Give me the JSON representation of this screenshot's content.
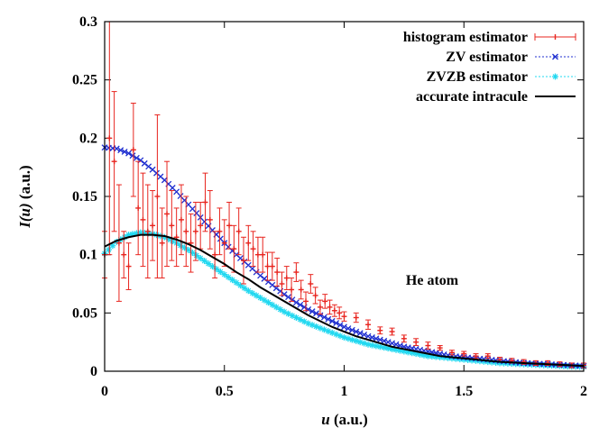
{
  "chart_data": {
    "type": "line",
    "xlabel_var": "u",
    "xlabel_unit": " (a.u.)",
    "ylabel_var": "I(u)",
    "ylabel_unit": " (a.u.)",
    "xlim": [
      0,
      2
    ],
    "ylim": [
      0,
      0.3
    ],
    "xticks": [
      0,
      0.5,
      1,
      1.5,
      2
    ],
    "xtick_labels": [
      "0",
      "0.5",
      "1",
      "1.5",
      "2"
    ],
    "yticks": [
      0,
      0.05,
      0.1,
      0.15,
      0.2,
      0.25,
      0.3
    ],
    "ytick_labels": [
      "0",
      "0.05",
      "0.1",
      "0.15",
      "0.2",
      "0.25",
      "0.3"
    ],
    "legend_position": "top-right",
    "annotation": "He atom",
    "colors": {
      "histogram": "#e8251f",
      "zv": "#1f2fd0",
      "zvzb": "#20d8f0",
      "accurate": "#000000"
    },
    "series": [
      {
        "name": "histogram estimator",
        "style": "errorbars",
        "x": [
          0.0,
          0.02,
          0.04,
          0.06,
          0.08,
          0.1,
          0.12,
          0.14,
          0.16,
          0.18,
          0.2,
          0.22,
          0.24,
          0.26,
          0.28,
          0.3,
          0.32,
          0.34,
          0.36,
          0.38,
          0.4,
          0.42,
          0.44,
          0.46,
          0.48,
          0.5,
          0.52,
          0.54,
          0.56,
          0.58,
          0.6,
          0.62,
          0.64,
          0.66,
          0.68,
          0.7,
          0.72,
          0.74,
          0.76,
          0.78,
          0.8,
          0.82,
          0.84,
          0.86,
          0.88,
          0.9,
          0.92,
          0.94,
          0.96,
          0.98,
          1.0,
          1.05,
          1.1,
          1.15,
          1.2,
          1.25,
          1.3,
          1.35,
          1.4,
          1.45,
          1.5,
          1.55,
          1.6,
          1.65,
          1.7,
          1.75,
          1.8,
          1.85,
          1.9,
          1.95,
          2.0
        ],
        "values": [
          0.1,
          0.2,
          0.18,
          0.11,
          0.1,
          0.09,
          0.19,
          0.14,
          0.13,
          0.12,
          0.125,
          0.15,
          0.11,
          0.135,
          0.125,
          0.115,
          0.13,
          0.12,
          0.11,
          0.12,
          0.125,
          0.145,
          0.13,
          0.1,
          0.12,
          0.11,
          0.125,
          0.105,
          0.12,
          0.095,
          0.11,
          0.105,
          0.1,
          0.1,
          0.09,
          0.09,
          0.085,
          0.075,
          0.08,
          0.07,
          0.085,
          0.07,
          0.06,
          0.075,
          0.065,
          0.055,
          0.06,
          0.055,
          0.052,
          0.05,
          0.047,
          0.046,
          0.04,
          0.035,
          0.034,
          0.028,
          0.025,
          0.022,
          0.02,
          0.016,
          0.015,
          0.013,
          0.013,
          0.01,
          0.009,
          0.008,
          0.007,
          0.007,
          0.006,
          0.005,
          0.005
        ],
        "errors": [
          0.02,
          0.1,
          0.06,
          0.05,
          0.02,
          0.02,
          0.04,
          0.04,
          0.04,
          0.04,
          0.03,
          0.07,
          0.03,
          0.045,
          0.03,
          0.025,
          0.03,
          0.03,
          0.025,
          0.025,
          0.02,
          0.025,
          0.025,
          0.02,
          0.02,
          0.02,
          0.02,
          0.02,
          0.02,
          0.02,
          0.015,
          0.015,
          0.015,
          0.015,
          0.012,
          0.012,
          0.012,
          0.01,
          0.01,
          0.01,
          0.008,
          0.008,
          0.008,
          0.008,
          0.007,
          0.006,
          0.006,
          0.006,
          0.005,
          0.005,
          0.004,
          0.004,
          0.004,
          0.003,
          0.003,
          0.003,
          0.003,
          0.003,
          0.002,
          0.002,
          0.002,
          0.002,
          0.002,
          0.002,
          0.002,
          0.002,
          0.002,
          0.002,
          0.002,
          0.002,
          0.002
        ]
      },
      {
        "name": "ZV estimator",
        "style": "dotted-x",
        "x": [
          0.0,
          0.05,
          0.1,
          0.15,
          0.2,
          0.25,
          0.3,
          0.35,
          0.4,
          0.45,
          0.5,
          0.55,
          0.6,
          0.65,
          0.7,
          0.75,
          0.8,
          0.85,
          0.9,
          0.95,
          1.0,
          1.05,
          1.1,
          1.15,
          1.2,
          1.25,
          1.3,
          1.35,
          1.4,
          1.45,
          1.5,
          1.55,
          1.6,
          1.65,
          1.7,
          1.75,
          1.8,
          1.85,
          1.9,
          1.95,
          2.0
        ],
        "values": [
          0.192,
          0.191,
          0.187,
          0.181,
          0.173,
          0.164,
          0.154,
          0.143,
          0.132,
          0.121,
          0.11,
          0.1,
          0.091,
          0.082,
          0.074,
          0.066,
          0.059,
          0.053,
          0.048,
          0.043,
          0.038,
          0.034,
          0.03,
          0.027,
          0.024,
          0.021,
          0.019,
          0.017,
          0.015,
          0.013,
          0.012,
          0.011,
          0.01,
          0.009,
          0.008,
          0.007,
          0.0065,
          0.006,
          0.0055,
          0.005,
          0.0045
        ]
      },
      {
        "name": "ZVZB estimator",
        "style": "dotted-star",
        "x": [
          0.0,
          0.05,
          0.1,
          0.15,
          0.2,
          0.25,
          0.3,
          0.35,
          0.4,
          0.45,
          0.5,
          0.55,
          0.6,
          0.65,
          0.7,
          0.75,
          0.8,
          0.85,
          0.9,
          0.95,
          1.0,
          1.05,
          1.1,
          1.15,
          1.2,
          1.25,
          1.3,
          1.35,
          1.4,
          1.45,
          1.5,
          1.55,
          1.6,
          1.65,
          1.7,
          1.75,
          1.8,
          1.85,
          1.9,
          1.95,
          2.0
        ],
        "values": [
          0.101,
          0.111,
          0.117,
          0.119,
          0.118,
          0.115,
          0.11,
          0.104,
          0.097,
          0.09,
          0.083,
          0.076,
          0.069,
          0.063,
          0.057,
          0.051,
          0.046,
          0.041,
          0.037,
          0.033,
          0.029,
          0.026,
          0.023,
          0.021,
          0.019,
          0.017,
          0.015,
          0.013,
          0.012,
          0.011,
          0.01,
          0.009,
          0.008,
          0.007,
          0.0065,
          0.006,
          0.0055,
          0.005,
          0.0045,
          0.004,
          0.0038
        ]
      },
      {
        "name": "accurate intracule",
        "style": "solid",
        "x": [
          0.0,
          0.05,
          0.1,
          0.15,
          0.2,
          0.25,
          0.3,
          0.35,
          0.4,
          0.45,
          0.5,
          0.55,
          0.6,
          0.65,
          0.7,
          0.75,
          0.8,
          0.85,
          0.9,
          0.95,
          1.0,
          1.05,
          1.1,
          1.15,
          1.2,
          1.25,
          1.3,
          1.35,
          1.4,
          1.45,
          1.5,
          1.55,
          1.6,
          1.65,
          1.7,
          1.75,
          1.8,
          1.85,
          1.9,
          1.95,
          2.0
        ],
        "values": [
          0.107,
          0.112,
          0.115,
          0.117,
          0.117,
          0.116,
          0.113,
          0.109,
          0.104,
          0.098,
          0.092,
          0.085,
          0.079,
          0.072,
          0.066,
          0.06,
          0.054,
          0.048,
          0.043,
          0.038,
          0.034,
          0.03,
          0.027,
          0.024,
          0.021,
          0.019,
          0.017,
          0.015,
          0.013,
          0.012,
          0.011,
          0.01,
          0.009,
          0.008,
          0.0075,
          0.007,
          0.0065,
          0.006,
          0.0055,
          0.005,
          0.0045
        ]
      }
    ]
  }
}
